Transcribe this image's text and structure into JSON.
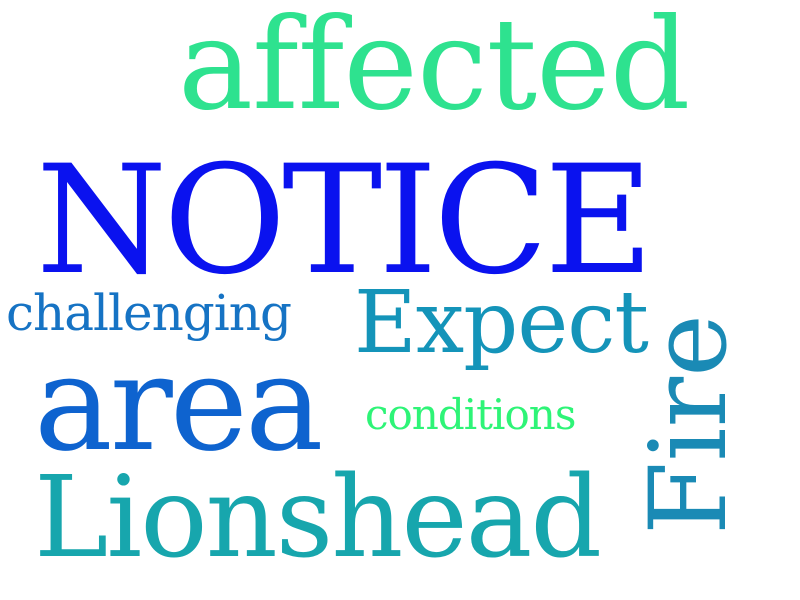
{
  "words": {
    "affected": {
      "text": "affected",
      "color": "#2ee28f"
    },
    "notice": {
      "text": "NOTICE",
      "color": "#0a12ef"
    },
    "challenging": {
      "text": "challenging",
      "color": "#1673c4"
    },
    "expect": {
      "text": "Expect",
      "color": "#1494b9"
    },
    "area": {
      "text": "area",
      "color": "#0e63cf"
    },
    "conditions": {
      "text": "conditions",
      "color": "#2ef477"
    },
    "lionshead": {
      "text": "Lionshead",
      "color": "#17a6ad"
    },
    "fire": {
      "text": "Fire",
      "color": "#1a8ab5",
      "orientation": "vertical"
    }
  }
}
